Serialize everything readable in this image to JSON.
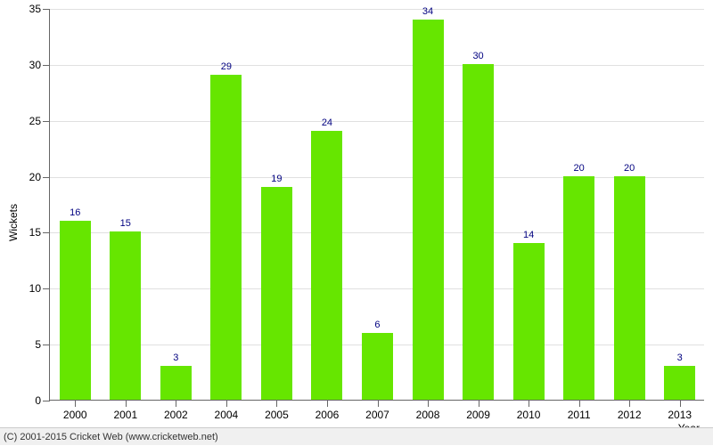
{
  "chart": {
    "type": "bar",
    "y_axis_title": "Wickets",
    "x_axis_title": "Year",
    "ylim_min": 0,
    "ylim_max": 35,
    "y_ticks": [
      0,
      5,
      10,
      15,
      20,
      25,
      30,
      35
    ],
    "categories": [
      "2000",
      "2001",
      "2002",
      "2004",
      "2005",
      "2006",
      "2007",
      "2008",
      "2009",
      "2010",
      "2011",
      "2012",
      "2013"
    ],
    "values": [
      16,
      15,
      3,
      29,
      19,
      24,
      6,
      34,
      30,
      14,
      20,
      20,
      3
    ],
    "bar_color": "#66e600",
    "value_label_color": "#000080",
    "grid_color": "#e0e0e0",
    "bar_width_ratio": 0.62,
    "plot_background": "#ffffff"
  },
  "footer": {
    "text": "(C) 2001-2015 Cricket Web (www.cricketweb.net)"
  }
}
